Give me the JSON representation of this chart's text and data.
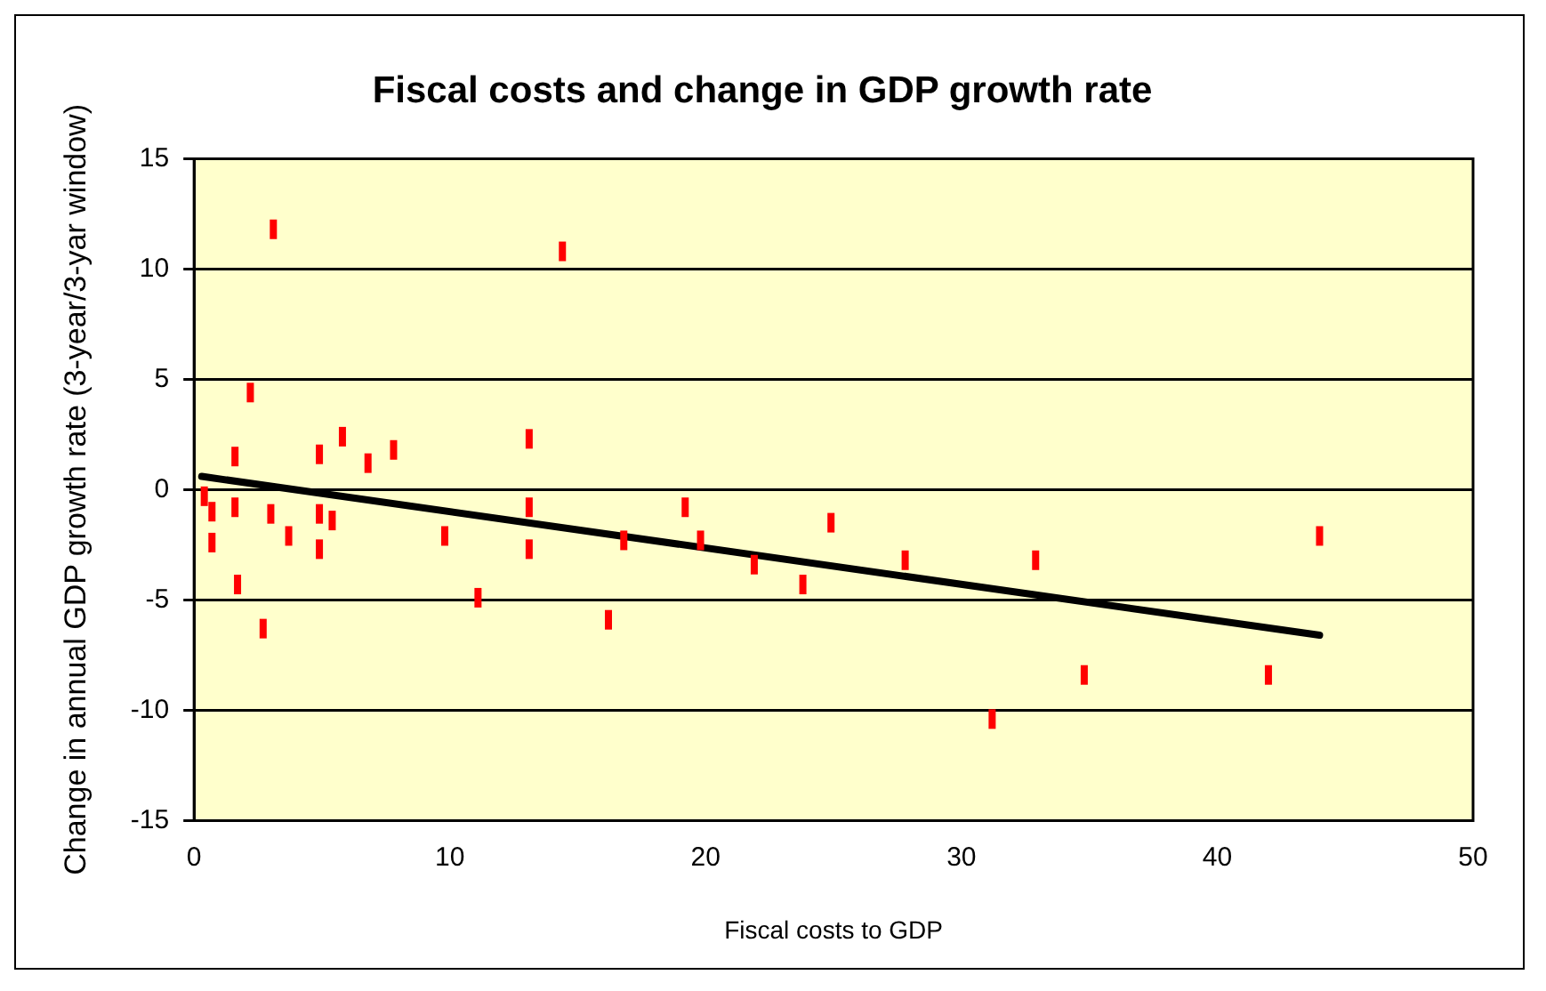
{
  "chart_data": {
    "type": "scatter",
    "title": "Fiscal costs and change in GDP growth rate",
    "xlabel": "Fiscal costs to GDP",
    "ylabel": "Change in annual GDP growth rate (3-year/3-yar window)",
    "xlim": [
      0,
      50
    ],
    "xticks": [
      0,
      10,
      20,
      30,
      40,
      50
    ],
    "ylim": [
      -15,
      15
    ],
    "yticks": [
      -15,
      -10,
      -5,
      0,
      5,
      10,
      15
    ],
    "grid": "y",
    "legend": false,
    "series": [
      {
        "type": "scatter",
        "color": "#ff0000",
        "x": [
          0.4,
          0.7,
          0.7,
          1.6,
          1.6,
          1.7,
          2.2,
          2.7,
          3.1,
          3.0,
          3.7,
          4.9,
          4.9,
          4.9,
          5.4,
          5.8,
          6.8,
          7.8,
          9.8,
          11.1,
          13.1,
          13.1,
          13.1,
          14.4,
          16.2,
          16.8,
          19.2,
          19.8,
          21.9,
          23.8,
          24.9,
          27.8,
          31.2,
          32.9,
          34.8,
          42.0,
          44.0
        ],
        "values": [
          -0.3,
          -1,
          -2.4,
          1.5,
          -0.8,
          -4.3,
          4.4,
          -6.3,
          11.8,
          -1.1,
          -2.1,
          1.6,
          -1.1,
          -2.7,
          -1.4,
          2.4,
          1.2,
          1.8,
          -2.1,
          -4.9,
          2.3,
          -0.8,
          -2.7,
          10.8,
          -5.9,
          -2.3,
          -0.8,
          -2.3,
          -3.4,
          -4.3,
          -1.5,
          -3.2,
          -10.4,
          -3.2,
          -8.4,
          -8.4,
          -2.1
        ]
      },
      {
        "type": "line",
        "color": "#000000",
        "x": [
          0.3,
          44.0
        ],
        "values": [
          0.6,
          -6.6
        ]
      }
    ]
  }
}
